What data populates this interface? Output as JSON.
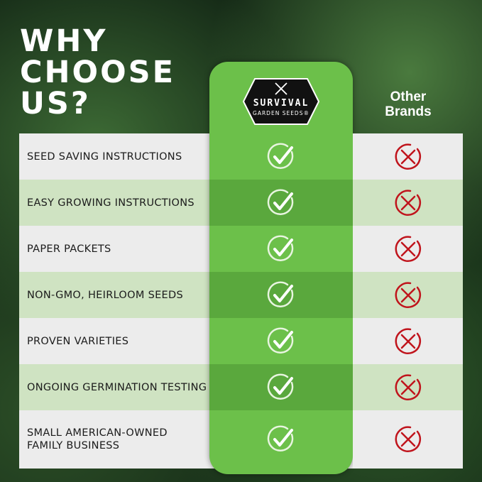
{
  "heading": {
    "line1": "WHY",
    "line2": "CHOOSE",
    "line3": "US?"
  },
  "brand": {
    "name_line1": "SURVIVAL",
    "name_line2": "GARDEN SEEDS®"
  },
  "other_column": {
    "line1": "Other",
    "line2": "Brands"
  },
  "features": [
    {
      "label": "SEED SAVING INSTRUCTIONS",
      "us": true,
      "others": false
    },
    {
      "label": "EASY GROWING INSTRUCTIONS",
      "us": true,
      "others": false
    },
    {
      "label": "PAPER PACKETS",
      "us": true,
      "others": false
    },
    {
      "label": "NON-GMO, HEIRLOOM SEEDS",
      "us": true,
      "others": false
    },
    {
      "label": "PROVEN VARIETIES",
      "us": true,
      "others": false
    },
    {
      "label": "ONGOING GERMINATION TESTING",
      "us": true,
      "others": false
    },
    {
      "label": "SMALL AMERICAN-OWNED FAMILY BUSINESS",
      "us": true,
      "others": false
    }
  ],
  "colors": {
    "brand_green": "#6cc04a",
    "check": "#ffffff",
    "cross": "#c0141c"
  }
}
